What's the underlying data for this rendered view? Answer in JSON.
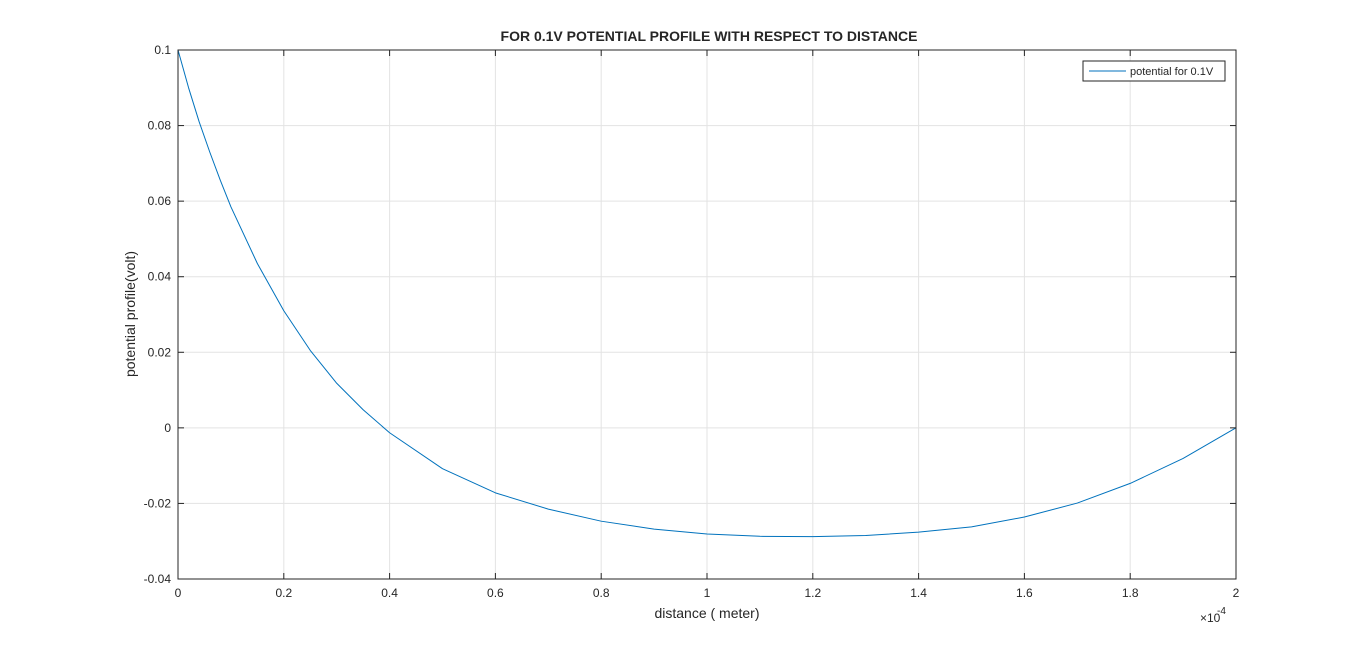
{
  "chart_data": {
    "type": "line",
    "title": "FOR 0.1V POTENTIAL PROFILE WITH RESPECT TO DISTANCE",
    "xlabel": "distance ( meter)",
    "ylabel": "potential profile(volt)",
    "x_exponent_base": "×10",
    "x_exponent_power": "-4",
    "xlim": [
      0,
      2
    ],
    "ylim": [
      -0.04,
      0.1
    ],
    "x_ticks": [
      "0",
      "0.2",
      "0.4",
      "0.6",
      "0.8",
      "1",
      "1.2",
      "1.4",
      "1.6",
      "1.8",
      "2"
    ],
    "x_tick_values": [
      0,
      0.2,
      0.4,
      0.6,
      0.8,
      1.0,
      1.2,
      1.4,
      1.6,
      1.8,
      2.0
    ],
    "y_ticks": [
      "0.1",
      "0.08",
      "0.06",
      "0.04",
      "0.02",
      "0",
      "-0.02",
      "-0.04"
    ],
    "y_tick_values": [
      0.1,
      0.08,
      0.06,
      0.04,
      0.02,
      0,
      -0.02,
      -0.04
    ],
    "grid": true,
    "legend_position": "top-right",
    "series": [
      {
        "name": "potential for 0.1V",
        "color": "#0072BD",
        "x": [
          0,
          0.02,
          0.04,
          0.06,
          0.08,
          0.1,
          0.15,
          0.2,
          0.25,
          0.3,
          0.35,
          0.4,
          0.5,
          0.6,
          0.7,
          0.8,
          0.9,
          1.0,
          1.1,
          1.2,
          1.3,
          1.4,
          1.5,
          1.6,
          1.7,
          1.8,
          1.9,
          2.0
        ],
        "y": [
          0.1,
          0.09,
          0.081,
          0.073,
          0.0655,
          0.0585,
          0.0435,
          0.031,
          0.0205,
          0.0118,
          0.0048,
          -0.0013,
          -0.0108,
          -0.0172,
          -0.0215,
          -0.0247,
          -0.0268,
          -0.0281,
          -0.0287,
          -0.0288,
          -0.0285,
          -0.0276,
          -0.0262,
          -0.0236,
          -0.0199,
          -0.0147,
          -0.0081,
          0.0
        ]
      }
    ]
  }
}
